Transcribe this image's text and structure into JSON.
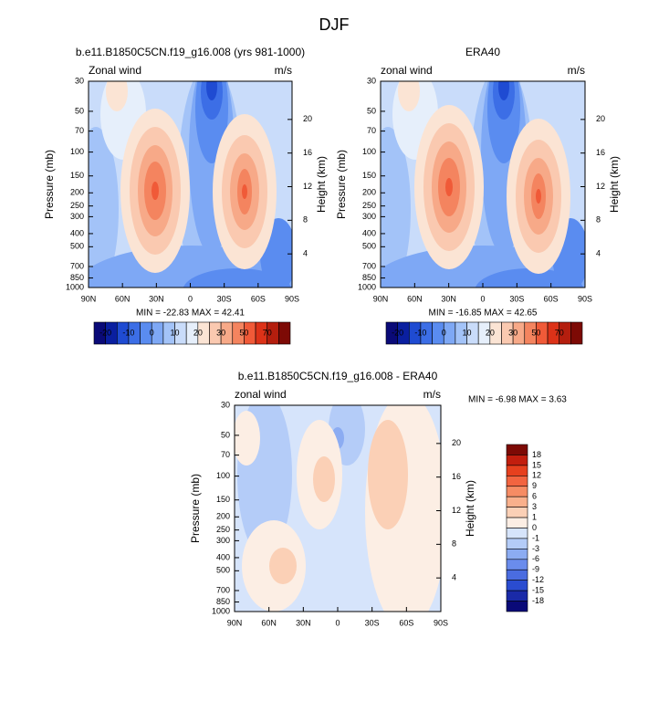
{
  "title": "DJF",
  "panels": [
    {
      "title": "b.e11.B1850C5CN.f19_g16.008 (yrs 981-1000)",
      "left_label": "Zonal wind",
      "right_label": "m/s",
      "y_label": "Pressure (mb)",
      "y2_label": "Height (km)",
      "xticks": [
        "90N",
        "60N",
        "30N",
        "0",
        "30S",
        "60S",
        "90S"
      ],
      "ylim": [
        30,
        1000
      ],
      "yticks": [
        30,
        50,
        70,
        100,
        150,
        200,
        250,
        300,
        400,
        500,
        700,
        850,
        1000
      ],
      "y2ticks": [
        20,
        16,
        12,
        8,
        4
      ],
      "min_max": "MIN = -22.83  MAX = 42.41"
    },
    {
      "title": "ERA40",
      "left_label": "zonal wind",
      "right_label": "m/s",
      "y_label": "Pressure (mb)",
      "y2_label": "Height (km)",
      "xticks": [
        "90N",
        "60N",
        "30N",
        "0",
        "30S",
        "60S",
        "90S"
      ],
      "ylim": [
        30,
        1000
      ],
      "yticks": [
        30,
        50,
        70,
        100,
        150,
        200,
        250,
        300,
        400,
        500,
        700,
        850,
        1000
      ],
      "y2ticks": [
        20,
        16,
        12,
        8,
        4
      ],
      "min_max": "MIN = -16.85  MAX = 42.65"
    },
    {
      "title": "b.e11.B1850C5CN.f19_g16.008 - ERA40",
      "left_label": "zonal wind",
      "right_label": "m/s",
      "y_label": "Pressure (mb)",
      "y2_label": "Height (km)",
      "xticks": [
        "90N",
        "60N",
        "30N",
        "0",
        "30S",
        "60S",
        "90S"
      ],
      "ylim": [
        30,
        1000
      ],
      "yticks": [
        30,
        50,
        70,
        100,
        150,
        200,
        250,
        300,
        400,
        500,
        700,
        850,
        1000
      ],
      "y2ticks": [
        20,
        16,
        12,
        8,
        4
      ],
      "min_max": "MIN =  -6.98  MAX =   3.63"
    }
  ],
  "colorbar": {
    "labels": [
      "-20",
      "-10",
      "0",
      "10",
      "20",
      "30",
      "50",
      "70"
    ],
    "colors": [
      "#0a0a78",
      "#0a1fa0",
      "#1f4bd2",
      "#3c6ee6",
      "#5a8cf0",
      "#7ea8f5",
      "#a3c3f8",
      "#c9dcfa",
      "#e6effb",
      "#fbe4d4",
      "#fac9b0",
      "#f7a988",
      "#f4845f",
      "#f05a38",
      "#dc3218",
      "#b41e0e",
      "#7d0a05"
    ]
  },
  "diff_colorbar": {
    "labels": [
      "18",
      "15",
      "12",
      "9",
      "6",
      "3",
      "1",
      "0",
      "-1",
      "-3",
      "-6",
      "-9",
      "-12",
      "-15",
      "-18"
    ],
    "colors": [
      "#7d0a05",
      "#c21e0e",
      "#e6401e",
      "#f26440",
      "#f68c64",
      "#f9b08c",
      "#fbd0b6",
      "#fceee4",
      "#d6e4fb",
      "#b4ccf8",
      "#8cacf2",
      "#6a8cec",
      "#4a6ce0",
      "#2a4cd0",
      "#1a2aa8",
      "#0a0a78"
    ]
  }
}
